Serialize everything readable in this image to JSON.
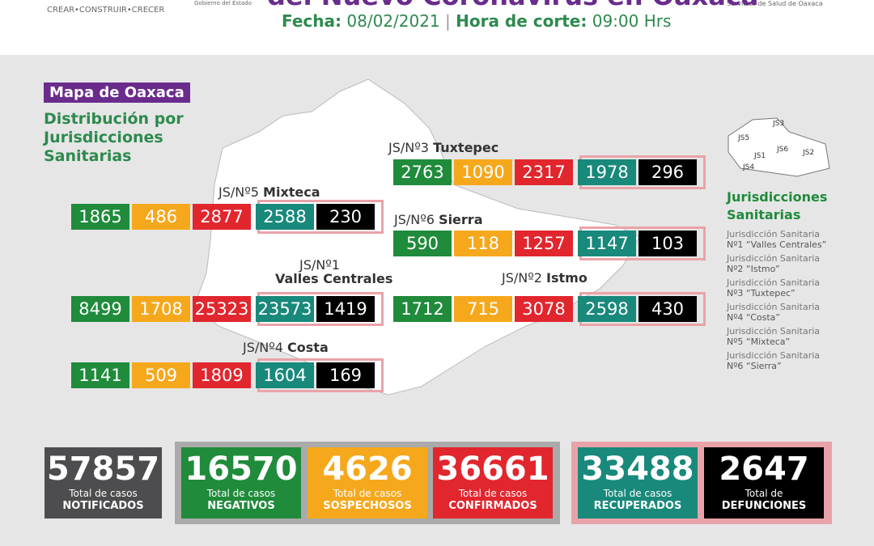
{
  "header": {
    "title": "del Nuevo Coronavirus en Oaxaca",
    "slogan": "CREAR•CONSTRUIR•CRECER",
    "gov": "Gobierno del Estado",
    "services": "Servicios de Salud de Oaxaca",
    "date_label": "Fecha:",
    "date": "08/02/2021",
    "time_label": "Hora de corte:",
    "time": "09:00 Hrs"
  },
  "map": {
    "badge": "Mapa de Oaxaca",
    "subtitle_lines": [
      "Distribución por",
      "Jurisdicciones",
      "Sanitarias"
    ]
  },
  "jurisdictions": [
    {
      "code": "JS/Nº3",
      "name": "Tuxtepec",
      "values": [
        2763,
        1090,
        2317,
        1978,
        296
      ]
    },
    {
      "code": "JS/Nº5",
      "name": "Mixteca",
      "values": [
        1865,
        486,
        2877,
        2588,
        230
      ]
    },
    {
      "code": "JS/Nº6",
      "name": "Sierra",
      "values": [
        590,
        118,
        1257,
        1147,
        103
      ]
    },
    {
      "code": "JS/Nº1",
      "name": "Valles Centrales",
      "values": [
        8499,
        1708,
        25323,
        23573,
        1419
      ]
    },
    {
      "code": "JS/Nº2",
      "name": "Istmo",
      "values": [
        1712,
        715,
        3078,
        2598,
        430
      ]
    },
    {
      "code": "JS/Nº4",
      "name": "Costa",
      "values": [
        1141,
        509,
        1809,
        1604,
        169
      ]
    }
  ],
  "legend": {
    "title_lines": [
      "Jurisdicciones",
      "Sanitarias"
    ],
    "minimap": [
      "JS3",
      "JS5",
      "JS6",
      "JS1",
      "JS2",
      "JS4"
    ],
    "items": [
      {
        "prefix": "Jurisdicción Sanitaria",
        "name": "Nº1 “Valles Centrales”"
      },
      {
        "prefix": "Jurisdicción Sanitaria",
        "name": "Nº2 “Istmo”"
      },
      {
        "prefix": "Jurisdicción Sanitaria",
        "name": "Nº3 “Tuxtepec”"
      },
      {
        "prefix": "Jurisdicción Sanitaria",
        "name": "Nº4 “Costa”"
      },
      {
        "prefix": "Jurisdicción Sanitaria",
        "name": "Nº5 “Mixteca”"
      },
      {
        "prefix": "Jurisdicción Sanitaria",
        "name": "Nº6 “Sierra”"
      }
    ]
  },
  "totals": [
    {
      "value": 57857,
      "line1": "Total de casos",
      "line2": "NOTIFICADOS"
    },
    {
      "value": 16570,
      "line1": "Total de casos",
      "line2": "NEGATIVOS"
    },
    {
      "value": 4626,
      "line1": "Total de casos",
      "line2": "SOSPECHOSOS"
    },
    {
      "value": 36661,
      "line1": "Total de casos",
      "line2": "CONFIRMADOS"
    },
    {
      "value": 33488,
      "line1": "Total de casos",
      "line2": "RECUPERADOS"
    },
    {
      "value": 2647,
      "line1": "Total de",
      "line2": "DEFUNCIONES"
    }
  ]
}
